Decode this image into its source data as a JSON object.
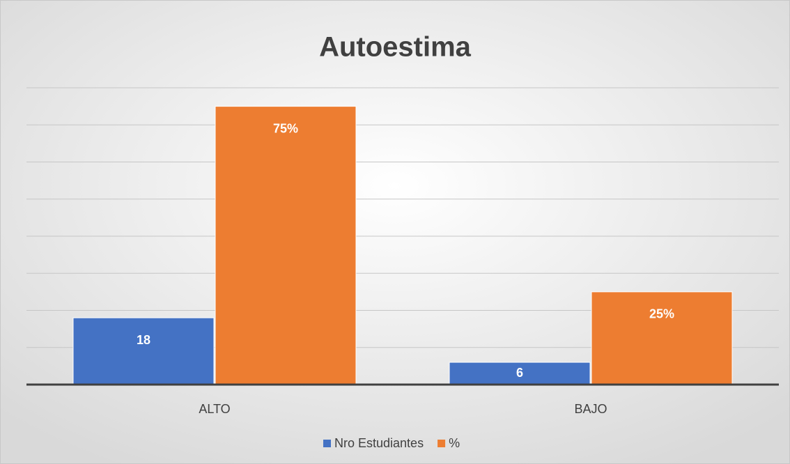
{
  "chart_data": {
    "type": "bar",
    "title": "Autoestima",
    "categories": [
      "ALTO",
      "BAJO"
    ],
    "series": [
      {
        "name": "Nro Estudiantes",
        "color": "#4472c4",
        "values": [
          18,
          6
        ]
      },
      {
        "name": "%",
        "color": "#ed7d31",
        "values": [
          75,
          25
        ],
        "value_labels": [
          "75%",
          "25%"
        ]
      }
    ],
    "ylim": [
      0,
      80
    ],
    "yticks": [
      0,
      10,
      20,
      30,
      40,
      50,
      60,
      70,
      80
    ],
    "grid": true,
    "legend": "bottom"
  }
}
